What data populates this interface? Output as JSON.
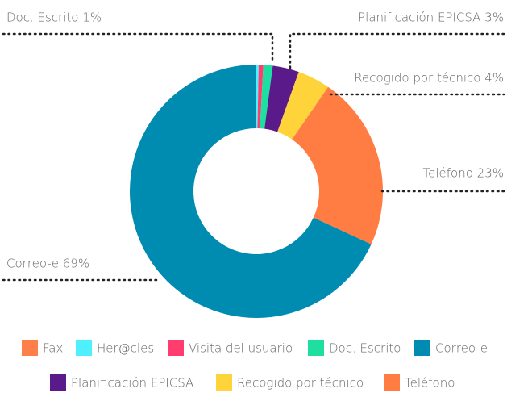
{
  "chart_data": {
    "type": "donut",
    "categories": [
      "Fax",
      "Her@cles",
      "Visita del usuario",
      "Doc. Escrito",
      "Correo-e",
      "Planificación EPICSA",
      "Recogido por técnico",
      "Teléfono"
    ],
    "values": [
      0,
      0.3,
      0.6,
      1.2,
      68.8,
      3.4,
      4.2,
      22.5
    ],
    "value_labels": [
      null,
      null,
      null,
      "Doc. Escrito 1%",
      "Correo-e 69%",
      "Planificación EPICSA 3%",
      "Recogido por técnico 4%",
      "Teléfono 23%"
    ],
    "colors": [
      "#ff7f4a",
      "#4ef0ff",
      "#ff3d6e",
      "#1de0a0",
      "#008bb0",
      "#5a1a8a",
      "#ffd43a",
      "#ff7c43"
    ]
  }
}
